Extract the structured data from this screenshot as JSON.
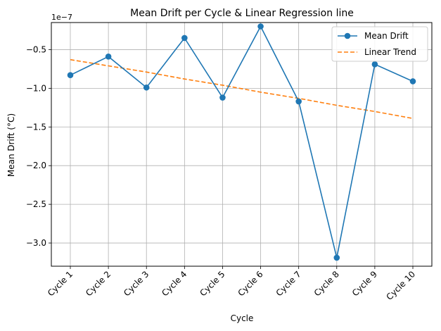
{
  "chart_data": {
    "type": "line",
    "title": "Mean Drift per Cycle & Linear Regression line",
    "xlabel": "Cycle",
    "ylabel": "Mean Drift (°C)",
    "y_offset_label": "1e−7",
    "categories": [
      "Cycle 1",
      "Cycle 2",
      "Cycle 3",
      "Cycle 4",
      "Cycle 5",
      "Cycle 6",
      "Cycle 7",
      "Cycle 8",
      "Cycle 9",
      "Cycle 10"
    ],
    "ylim": [
      -3.3,
      -0.15
    ],
    "yticks": [
      -0.5,
      -1.0,
      -1.5,
      -2.0,
      -2.5,
      -3.0
    ],
    "ytick_labels": [
      "−0.5",
      "−1.0",
      "−1.5",
      "−2.0",
      "−2.5",
      "−3.0"
    ],
    "grid": true,
    "legend_position": "top-right",
    "series": [
      {
        "name": "Mean Drift",
        "style": "solid-line-with-circle-markers",
        "color": "#1f77b4",
        "values": [
          -0.83,
          -0.59,
          -0.99,
          -0.35,
          -1.12,
          -0.2,
          -1.17,
          -3.19,
          -0.69,
          -0.91
        ]
      },
      {
        "name": "Linear Trend",
        "style": "dashed-line",
        "color": "#ff7f0e",
        "values": [
          -0.63,
          -0.71,
          -0.79,
          -0.88,
          -0.96,
          -1.05,
          -1.13,
          -1.22,
          -1.3,
          -1.39
        ]
      }
    ]
  }
}
